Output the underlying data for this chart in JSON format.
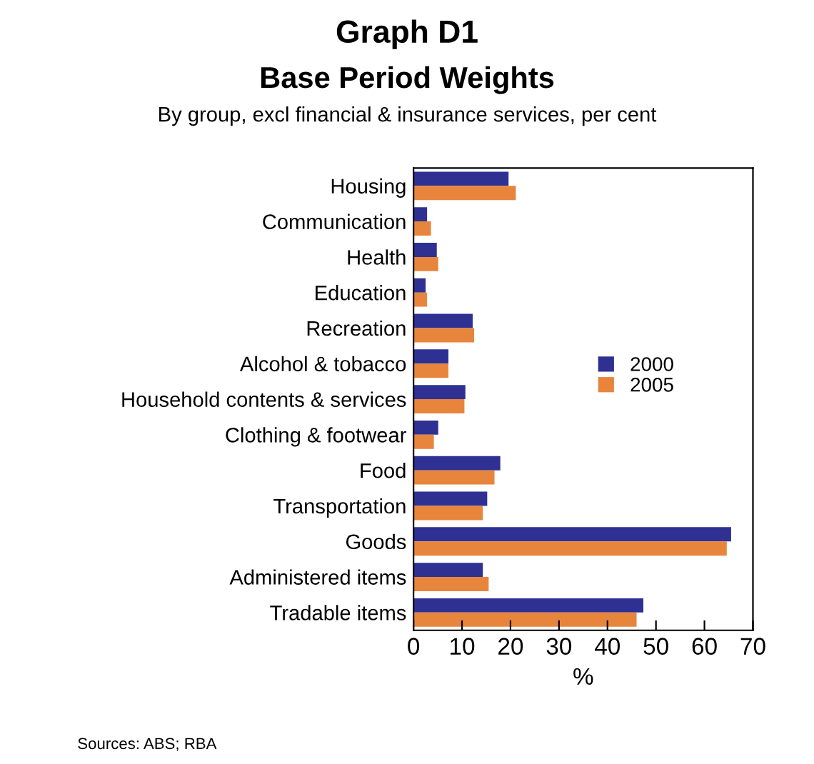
{
  "chart_data": {
    "type": "bar",
    "orientation": "horizontal",
    "title": "Graph D1",
    "subtitle": "Base Period Weights",
    "annotations": [
      "By group, excl financial & insurance services, per cent",
      "Sources: ABS; RBA"
    ],
    "xlabel": "%",
    "categories": [
      "Housing",
      "Communication",
      "Health",
      "Education",
      "Recreation",
      "Alcohol & tobacco",
      "Household contents & services",
      "Clothing & footwear",
      "Food",
      "Transportation",
      "Goods",
      "Administered items",
      "Tradable items"
    ],
    "series": [
      {
        "name": "2000",
        "color": "#2e3192",
        "values": [
          19.6,
          2.8,
          4.8,
          2.5,
          12.2,
          7.2,
          10.7,
          5.1,
          17.9,
          15.2,
          65.5,
          14.3,
          47.4
        ]
      },
      {
        "name": "2005",
        "color": "#e8853d",
        "values": [
          21.1,
          3.6,
          5.1,
          2.8,
          12.5,
          7.2,
          10.5,
          4.2,
          16.7,
          14.3,
          64.6,
          15.5,
          46.0
        ]
      }
    ],
    "xlim": [
      0,
      70
    ],
    "xticks": [
      0,
      10,
      20,
      30,
      40,
      50,
      60,
      70
    ],
    "grid": false,
    "legend": "right"
  }
}
